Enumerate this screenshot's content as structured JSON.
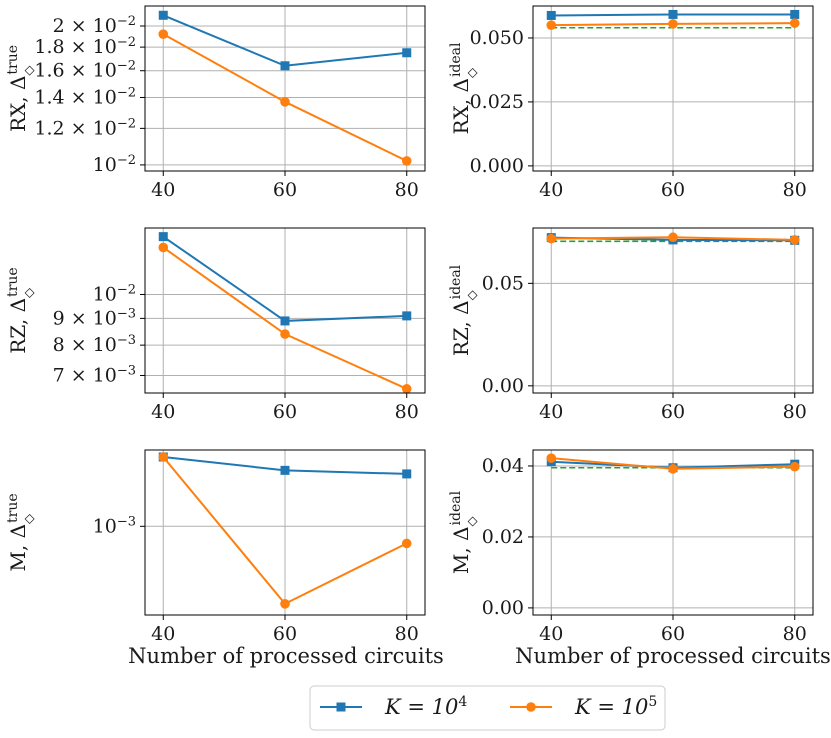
{
  "figure": {
    "x_axis_label": "Number of processed circuits",
    "legend": [
      {
        "label": "K = 10",
        "exponent": "4",
        "color": "#1f77b4",
        "marker": "square"
      },
      {
        "label": "K = 10",
        "exponent": "5",
        "color": "#ff7f0e",
        "marker": "circle"
      }
    ],
    "ideal_line_color": "#2ca02c"
  },
  "chart_data": [
    {
      "type": "line",
      "id": "rx-true",
      "row": 0,
      "col": 0,
      "ylabel": "RX, Δ",
      "ylabel_sub": "◇",
      "ylabel_sup": "true",
      "yscale": "log",
      "ylim": [
        0.0097,
        0.0221
      ],
      "x": [
        40,
        60,
        80
      ],
      "xlim": [
        37,
        83
      ],
      "xticks": [
        "40",
        "60",
        "80"
      ],
      "yticks": [
        {
          "value": 0.02,
          "mant": "2 × 10",
          "exp": "−2"
        },
        {
          "value": 0.018,
          "mant": "1.8 × 10",
          "exp": "−2"
        },
        {
          "value": 0.016,
          "mant": "1.6 × 10",
          "exp": "−2"
        },
        {
          "value": 0.014,
          "mant": "1.4 × 10",
          "exp": "−2"
        },
        {
          "value": 0.012,
          "mant": "1.2 × 10",
          "exp": "−2"
        },
        {
          "value": 0.01,
          "mant": "10",
          "exp": "−2"
        }
      ],
      "series": [
        {
          "name": "K = 10^4",
          "values": [
            0.0211,
            0.0164,
            0.0175
          ]
        },
        {
          "name": "K = 10^5",
          "values": [
            0.0192,
            0.0137,
            0.0102
          ]
        }
      ]
    },
    {
      "type": "line",
      "id": "rx-ideal",
      "row": 0,
      "col": 1,
      "ylabel": "RX, Δ",
      "ylabel_sub": "◇",
      "ylabel_sup": "ideal",
      "yscale": "linear",
      "ylim": [
        -0.002,
        0.0625
      ],
      "x": [
        40,
        60,
        80
      ],
      "xlim": [
        37,
        83
      ],
      "xticks": [
        "40",
        "60",
        "80"
      ],
      "yticks": [
        {
          "value": 0.05,
          "label": "0.050"
        },
        {
          "value": 0.025,
          "label": "0.025"
        },
        {
          "value": 0.0,
          "label": "0.000"
        }
      ],
      "ideal": 0.054,
      "series": [
        {
          "name": "K = 10^4",
          "values": [
            0.0588,
            0.0592,
            0.0592
          ]
        },
        {
          "name": "K = 10^5",
          "values": [
            0.055,
            0.0555,
            0.0558
          ]
        }
      ]
    },
    {
      "type": "line",
      "id": "rz-true",
      "row": 1,
      "col": 0,
      "ylabel": "RZ, Δ",
      "ylabel_sub": "◇",
      "ylabel_sup": "true",
      "yscale": "log",
      "ylim": [
        0.00648,
        0.0134
      ],
      "x": [
        40,
        60,
        80
      ],
      "xlim": [
        37,
        83
      ],
      "xticks": [
        "40",
        "60",
        "80"
      ],
      "yticks": [
        {
          "value": 0.01,
          "mant": "10",
          "exp": "−2"
        },
        {
          "value": 0.009,
          "mant": "9 × 10",
          "exp": "−3"
        },
        {
          "value": 0.008,
          "mant": "8 × 10",
          "exp": "−3"
        },
        {
          "value": 0.007,
          "mant": "7 × 10",
          "exp": "−3"
        }
      ],
      "series": [
        {
          "name": "K = 10^4",
          "values": [
            0.0129,
            0.0089,
            0.0091
          ]
        },
        {
          "name": "K = 10^5",
          "values": [
            0.0123,
            0.0084,
            0.0066
          ]
        }
      ]
    },
    {
      "type": "line",
      "id": "rz-ideal",
      "row": 1,
      "col": 1,
      "ylabel": "RZ, Δ",
      "ylabel_sub": "◇",
      "ylabel_sup": "ideal",
      "yscale": "linear",
      "ylim": [
        -0.0035,
        0.077
      ],
      "x": [
        40,
        60,
        80
      ],
      "xlim": [
        37,
        83
      ],
      "xticks": [
        "40",
        "60",
        "80"
      ],
      "yticks": [
        {
          "value": 0.05,
          "label": "0.05"
        },
        {
          "value": 0.0,
          "label": "0.00"
        }
      ],
      "ideal": 0.0705,
      "series": [
        {
          "name": "K = 10^4",
          "values": [
            0.0723,
            0.0712,
            0.071
          ]
        },
        {
          "name": "K = 10^5",
          "values": [
            0.0718,
            0.0725,
            0.0712
          ]
        }
      ]
    },
    {
      "type": "line",
      "id": "m-true",
      "row": 2,
      "col": 0,
      "ylabel": "M, Δ",
      "ylabel_sub": "◇",
      "ylabel_sup": "true",
      "yscale": "log",
      "ylim": [
        0.000515,
        0.00177
      ],
      "x": [
        40,
        60,
        80
      ],
      "xlim": [
        37,
        83
      ],
      "xticks": [
        "40",
        "60",
        "80"
      ],
      "yticks": [
        {
          "value": 0.001,
          "mant": "10",
          "exp": "−3"
        }
      ],
      "series": [
        {
          "name": "K = 10^4",
          "values": [
            0.00168,
            0.00152,
            0.00148
          ]
        },
        {
          "name": "K = 10^5",
          "values": [
            0.00168,
            0.00056,
            0.00088
          ]
        }
      ]
    },
    {
      "type": "line",
      "id": "m-ideal",
      "row": 2,
      "col": 1,
      "ylabel": "M, Δ",
      "ylabel_sub": "◇",
      "ylabel_sup": "ideal",
      "yscale": "linear",
      "ylim": [
        -0.002,
        0.0445
      ],
      "x": [
        40,
        60,
        80
      ],
      "xlim": [
        37,
        83
      ],
      "xticks": [
        "40",
        "60",
        "80"
      ],
      "yticks": [
        {
          "value": 0.04,
          "label": "0.04"
        },
        {
          "value": 0.02,
          "label": "0.02"
        },
        {
          "value": 0.0,
          "label": "0.00"
        }
      ],
      "ideal": 0.0395,
      "series": [
        {
          "name": "K = 10^4",
          "values": [
            0.0412,
            0.0395,
            0.0405
          ]
        },
        {
          "name": "K = 10^5",
          "values": [
            0.0422,
            0.0392,
            0.0398
          ]
        }
      ]
    }
  ]
}
